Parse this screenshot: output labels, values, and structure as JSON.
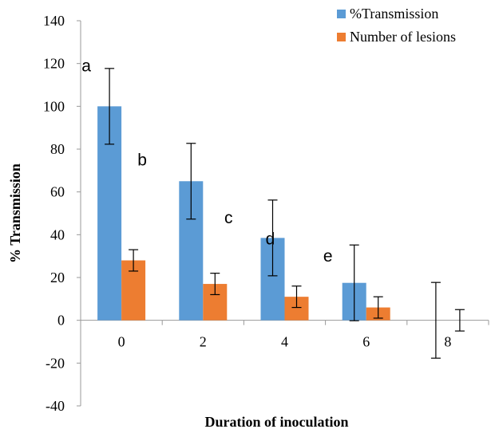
{
  "chart_data": {
    "type": "bar",
    "categories": [
      "0",
      "2",
      "4",
      "6",
      "8"
    ],
    "series": [
      {
        "name": "%Transmission",
        "color": "#5B9BD5",
        "values": [
          100,
          65,
          38.5,
          17.5,
          0
        ],
        "errors": [
          17.7,
          17.7,
          17.7,
          17.7,
          17.7
        ]
      },
      {
        "name": "Number of lesions",
        "color": "#ED7D31",
        "values": [
          28,
          17,
          11,
          6,
          0
        ],
        "errors": [
          5,
          5,
          5,
          5,
          5
        ]
      }
    ],
    "xlabel": "Duration of inoculation",
    "ylabel": "% Transmission",
    "ylim": [
      -40,
      140
    ],
    "yticks": [
      -40,
      -20,
      0,
      20,
      40,
      60,
      80,
      100,
      120,
      140
    ],
    "grid": false,
    "legend_position": "top-right",
    "annotations": [
      {
        "text": "a",
        "category": "0",
        "y": 119
      },
      {
        "text": "b",
        "category": "0",
        "y": 75
      },
      {
        "text": "c",
        "category": "2",
        "y": 48
      },
      {
        "text": "d",
        "category": "4",
        "y": 38
      },
      {
        "text": "e",
        "category": "6",
        "y": 30
      }
    ]
  }
}
